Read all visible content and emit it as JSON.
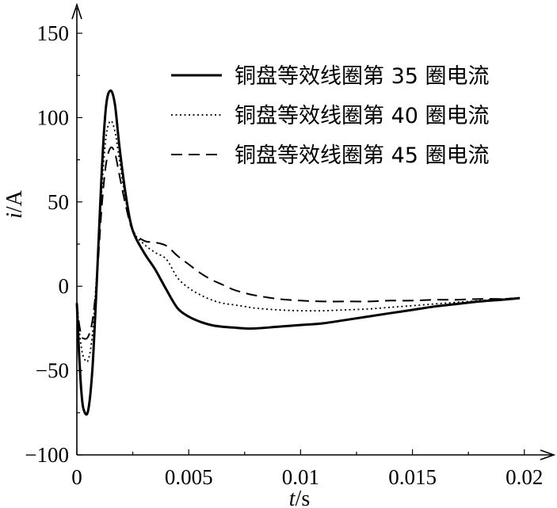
{
  "chart_data": {
    "type": "line",
    "xlabel": "t/s",
    "ylabel": "i/A",
    "xlim": [
      0,
      0.021
    ],
    "ylim": [
      -100,
      160
    ],
    "x_ticks": [
      0,
      0.005,
      0.01,
      0.015,
      0.02
    ],
    "x_tick_labels": [
      "0",
      "0.005",
      "0.01",
      "0.015",
      "0.02"
    ],
    "y_ticks": [
      -100,
      -50,
      0,
      50,
      100,
      150
    ],
    "y_tick_labels": [
      "−100",
      "−50",
      "0",
      "50",
      "100",
      "150"
    ],
    "grid": false,
    "legend_position": "top-right",
    "series": [
      {
        "name": "铜盘等效线圈第 35 圈电流",
        "line_style": "solid",
        "color": "#000000",
        "x": [
          0,
          0.0001,
          0.0002,
          0.0003,
          0.0005,
          0.0007,
          0.0009,
          0.0011,
          0.0013,
          0.0015,
          0.0017,
          0.0019,
          0.0022,
          0.0025,
          0.003,
          0.0035,
          0.004,
          0.0045,
          0.005,
          0.0055,
          0.006,
          0.0065,
          0.007,
          0.0075,
          0.008,
          0.009,
          0.01,
          0.011,
          0.012,
          0.013,
          0.014,
          0.015,
          0.016,
          0.017,
          0.018,
          0.019,
          0.0198
        ],
        "y": [
          -10,
          -40,
          -62,
          -73,
          -74,
          -48,
          5,
          65,
          106,
          116,
          108,
          83,
          53,
          33,
          20,
          10,
          -2,
          -13,
          -18,
          -21,
          -23,
          -24,
          -24.5,
          -25,
          -25,
          -24,
          -23,
          -22,
          -20,
          -18,
          -16,
          -14,
          -12,
          -10.5,
          -9,
          -8,
          -7
        ]
      },
      {
        "name": "铜盘等效线圈第 40 圈电流",
        "line_style": "dotted",
        "color": "#000000",
        "x": [
          0,
          0.0001,
          0.0002,
          0.0003,
          0.0005,
          0.0007,
          0.0009,
          0.0011,
          0.0013,
          0.0015,
          0.0017,
          0.0019,
          0.0022,
          0.0025,
          0.003,
          0.0035,
          0.004,
          0.0045,
          0.005,
          0.0055,
          0.006,
          0.0065,
          0.007,
          0.0075,
          0.008,
          0.009,
          0.01,
          0.011,
          0.012,
          0.013,
          0.014,
          0.015,
          0.016,
          0.017,
          0.018,
          0.019,
          0.0198
        ],
        "y": [
          -10,
          -25,
          -36,
          -42,
          -44,
          -28,
          10,
          55,
          88,
          98,
          92,
          75,
          50,
          33,
          25,
          20,
          16,
          5,
          -1,
          -5,
          -8,
          -10,
          -11,
          -12,
          -13,
          -14,
          -14.5,
          -14.5,
          -14,
          -13.5,
          -12.5,
          -11.5,
          -10.5,
          -9.5,
          -8.5,
          -7.5,
          -7
        ]
      },
      {
        "name": "铜盘等效线圈第 45 圈电流",
        "line_style": "dashed",
        "color": "#000000",
        "x": [
          0,
          0.0001,
          0.0002,
          0.0003,
          0.0005,
          0.0007,
          0.0009,
          0.0011,
          0.0013,
          0.0015,
          0.0017,
          0.0019,
          0.0022,
          0.0025,
          0.003,
          0.0035,
          0.004,
          0.0045,
          0.005,
          0.0055,
          0.006,
          0.0065,
          0.007,
          0.0075,
          0.008,
          0.009,
          0.01,
          0.011,
          0.012,
          0.013,
          0.014,
          0.015,
          0.016,
          0.017,
          0.018,
          0.019,
          0.0198
        ],
        "y": [
          -10,
          -22,
          -29,
          -31,
          -30,
          -20,
          5,
          45,
          72,
          82,
          79,
          66,
          47,
          33,
          27,
          26,
          24,
          18,
          13,
          8,
          4,
          1,
          -2,
          -4,
          -5.5,
          -7.5,
          -8.5,
          -9,
          -9,
          -9,
          -8.5,
          -8.5,
          -8,
          -8,
          -7.5,
          -7.5,
          -7
        ]
      }
    ]
  }
}
